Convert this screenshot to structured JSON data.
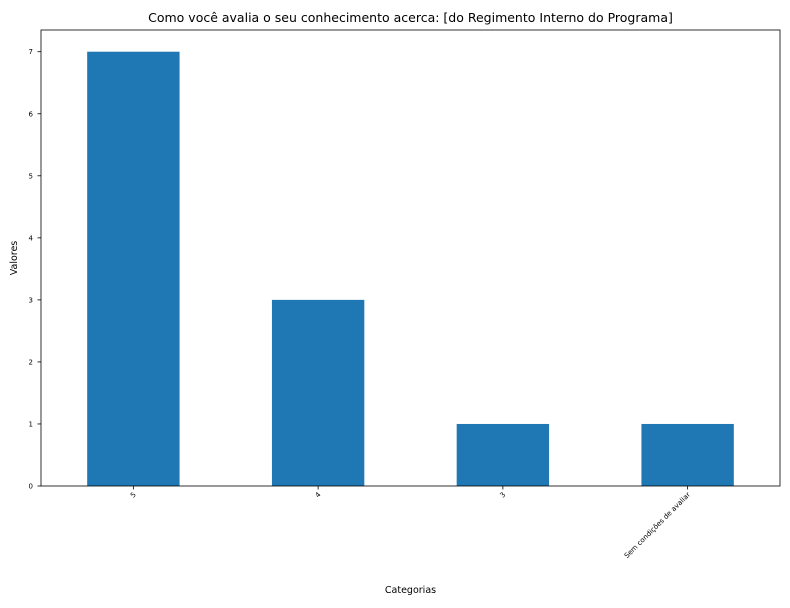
{
  "chart_data": {
    "type": "bar",
    "title": "Como você avalia o seu conhecimento acerca: [do Regimento Interno do Programa]",
    "xlabel": "Categorias",
    "ylabel": "Valores",
    "categories": [
      "5",
      "4",
      "3",
      "Sem condições de avaliar"
    ],
    "values": [
      7,
      3,
      1,
      1
    ],
    "ylim": [
      0,
      7.35
    ],
    "yticks": [
      "0",
      "1",
      "2",
      "3",
      "4",
      "5",
      "6",
      "7"
    ],
    "grid": false,
    "legend": "none",
    "bar_color": "#1f77b4"
  }
}
